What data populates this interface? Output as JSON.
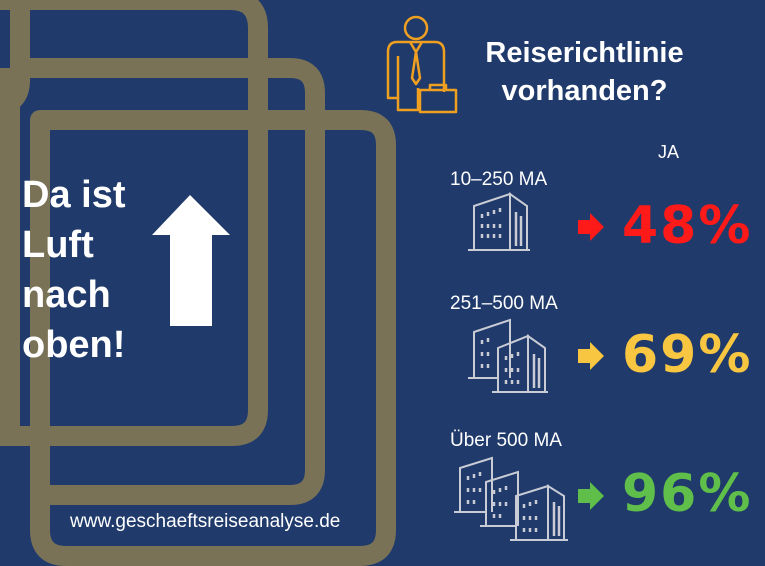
{
  "headline": [
    "Da ist",
    "Luft",
    "nach",
    "oben!"
  ],
  "title": [
    "Reiserichtlinie",
    "vorhanden?"
  ],
  "column_header": "JA",
  "rows": [
    {
      "label": "10–250 MA",
      "value": "48%",
      "color": "#ff1a1a",
      "arrow_color": "#ff1a1a"
    },
    {
      "label": "251–500 MA",
      "value": "69%",
      "color": "#f9c642",
      "arrow_color": "#f9c642"
    },
    {
      "label": "Über 500 MA",
      "value": "96%",
      "color": "#5fbf4a",
      "arrow_color": "#5fbf4a"
    }
  ],
  "website": "www.geschaeftsreiseanalyse.de",
  "colors": {
    "background": "#1f3a6b",
    "document_outline": "#7a7256",
    "icon_businessman": "#f0a020",
    "icon_buildings": "#c9ccd4"
  },
  "icons": [
    "document-stack-icon",
    "up-arrow-icon",
    "businessman-icon",
    "building-icon",
    "right-arrow-icon"
  ]
}
